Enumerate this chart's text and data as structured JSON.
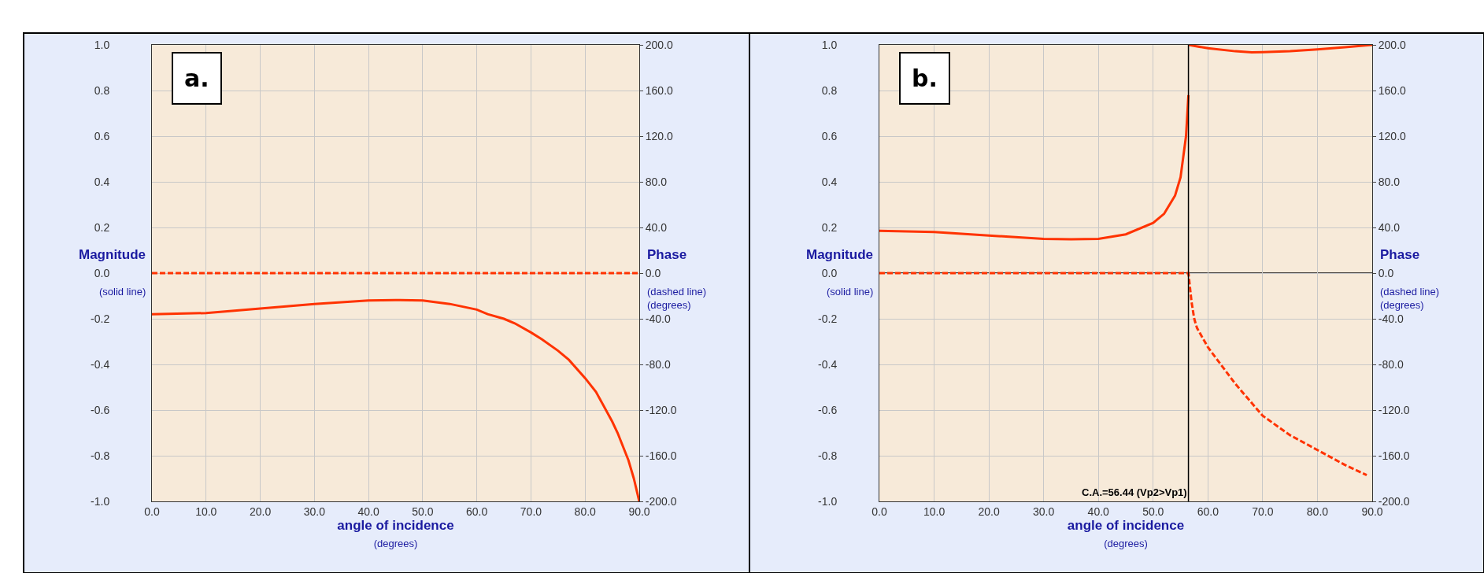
{
  "chart_data": [
    {
      "type": "line",
      "annotations": [
        "a."
      ],
      "xlabel": "angle of incidence\n(degrees)",
      "ylabel": "Magnitude\n(solid line)",
      "y2label": "Phase\n(dashed line)\n(degrees)",
      "xlim": [
        0,
        90
      ],
      "ylim": [
        -1,
        1
      ],
      "y2lim": [
        -200,
        200
      ],
      "xticks": [
        {
          "value": 0,
          "label": "0.0"
        },
        {
          "value": 10,
          "label": "10.0"
        },
        {
          "value": 20,
          "label": "20.0"
        },
        {
          "value": 30,
          "label": "30.0"
        },
        {
          "value": 40,
          "label": "40.0"
        },
        {
          "value": 50,
          "label": "50.0"
        },
        {
          "value": 60,
          "label": "60.0"
        },
        {
          "value": 70,
          "label": "70.0"
        },
        {
          "value": 80,
          "label": "80.0"
        },
        {
          "value": 90,
          "label": "90.0"
        }
      ],
      "yticks": [
        {
          "value": -1,
          "label": "-1.0"
        },
        {
          "value": -0.8,
          "label": "-0.8"
        },
        {
          "value": -0.6,
          "label": "-0.6"
        },
        {
          "value": -0.4,
          "label": "-0.4"
        },
        {
          "value": -0.2,
          "label": "-0.2"
        },
        {
          "value": 0,
          "label": "0.0"
        },
        {
          "value": 0.2,
          "label": "0.2"
        },
        {
          "value": 0.4,
          "label": "0.4"
        },
        {
          "value": 0.6,
          "label": "0.6"
        },
        {
          "value": 0.8,
          "label": "0.8"
        },
        {
          "value": 1,
          "label": "1.0"
        }
      ],
      "y2ticks": [
        {
          "value": -200,
          "label": "-200.0"
        },
        {
          "value": -160,
          "label": "-160.0"
        },
        {
          "value": -120,
          "label": "-120.0"
        },
        {
          "value": -80,
          "label": "-80.0"
        },
        {
          "value": -40,
          "label": "-40.0"
        },
        {
          "value": 0,
          "label": "0.0"
        },
        {
          "value": 40,
          "label": "40.0"
        },
        {
          "value": 80,
          "label": "80.0"
        },
        {
          "value": 120,
          "label": "120.0"
        },
        {
          "value": 160,
          "label": "160.0"
        },
        {
          "value": 200,
          "label": "200.0"
        }
      ],
      "grid": true,
      "series": [
        {
          "color": "#ff3300",
          "line_style": "solid",
          "x": [
            0,
            10,
            20,
            30,
            40,
            45,
            50,
            55,
            60,
            62,
            65,
            67,
            70,
            72,
            75,
            77,
            80,
            82,
            85,
            86,
            88,
            89,
            90
          ],
          "values": [
            -0.18,
            -0.175,
            -0.155,
            -0.135,
            -0.12,
            -0.118,
            -0.12,
            -0.135,
            -0.16,
            -0.18,
            -0.2,
            -0.22,
            -0.26,
            -0.29,
            -0.34,
            -0.38,
            -0.46,
            -0.52,
            -0.65,
            -0.7,
            -0.82,
            -0.9,
            -1.0
          ]
        },
        {
          "color": "#ff3300",
          "line_style": "dashed",
          "axis": "y2",
          "x": [
            0,
            90
          ],
          "values": [
            0,
            0
          ]
        }
      ]
    },
    {
      "type": "line",
      "annotations": [
        "b."
      ],
      "xlabel": "angle of incidence\n(degrees)",
      "ylabel": "Magnitude\n(solid line)",
      "y2label": "Phase\n(dashed line)\n(degrees)",
      "xlim": [
        0,
        90
      ],
      "ylim": [
        -1,
        1
      ],
      "y2lim": [
        -200,
        200
      ],
      "xticks": [
        {
          "value": 0,
          "label": "0.0"
        },
        {
          "value": 10,
          "label": "10.0"
        },
        {
          "value": 20,
          "label": "20.0"
        },
        {
          "value": 30,
          "label": "30.0"
        },
        {
          "value": 40,
          "label": "40.0"
        },
        {
          "value": 50,
          "label": "50.0"
        },
        {
          "value": 60,
          "label": "60.0"
        },
        {
          "value": 70,
          "label": "70.0"
        },
        {
          "value": 80,
          "label": "80.0"
        },
        {
          "value": 90,
          "label": "90.0"
        }
      ],
      "yticks": [
        {
          "value": -1,
          "label": "-1.0"
        },
        {
          "value": -0.8,
          "label": "-0.8"
        },
        {
          "value": -0.6,
          "label": "-0.6"
        },
        {
          "value": -0.4,
          "label": "-0.4"
        },
        {
          "value": -0.2,
          "label": "-0.2"
        },
        {
          "value": 0,
          "label": "0.0"
        },
        {
          "value": 0.2,
          "label": "0.2"
        },
        {
          "value": 0.4,
          "label": "0.4"
        },
        {
          "value": 0.6,
          "label": "0.6"
        },
        {
          "value": 0.8,
          "label": "0.8"
        },
        {
          "value": 1,
          "label": "1.0"
        }
      ],
      "y2ticks": [
        {
          "value": -200,
          "label": "-200.0"
        },
        {
          "value": -160,
          "label": "-160.0"
        },
        {
          "value": -120,
          "label": "-120.0"
        },
        {
          "value": -80,
          "label": "-80.0"
        },
        {
          "value": -40,
          "label": "-40.0"
        },
        {
          "value": 0,
          "label": "0.0"
        },
        {
          "value": 40,
          "label": "40.0"
        },
        {
          "value": 80,
          "label": "80.0"
        },
        {
          "value": 120,
          "label": "120.0"
        },
        {
          "value": 160,
          "label": "160.0"
        },
        {
          "value": 200,
          "label": "200.0"
        }
      ],
      "grid": true,
      "ref_lines": [
        {
          "axis": "x",
          "value": 56.44,
          "label": "C.A.=56.44 (Vp2>Vp1)",
          "color": "#000000"
        },
        {
          "axis": "y",
          "value": 0,
          "color": "#000000"
        }
      ],
      "series": [
        {
          "color": "#ff3300",
          "line_style": "solid",
          "x": [
            0,
            10,
            20,
            30,
            35,
            40,
            45,
            50,
            52,
            54,
            55,
            56,
            56.44
          ],
          "values": [
            0.185,
            0.18,
            0.165,
            0.15,
            0.148,
            0.15,
            0.17,
            0.22,
            0.26,
            0.34,
            0.42,
            0.6,
            0.78
          ]
        },
        {
          "color": "#ff3300",
          "line_style": "solid",
          "x": [
            56.44,
            60,
            65,
            68,
            70,
            75,
            80,
            85,
            90
          ],
          "values": [
            1.0,
            0.985,
            0.972,
            0.967,
            0.968,
            0.972,
            0.98,
            0.99,
            1.0
          ]
        },
        {
          "color": "#ff3300",
          "line_style": "dashed",
          "axis": "y2",
          "x": [
            0,
            56.44,
            57,
            57.5,
            58,
            60,
            65,
            70,
            75,
            80,
            85,
            89
          ],
          "values": [
            0,
            0,
            -25,
            -40,
            -48,
            -65,
            -97,
            -125,
            -142,
            -155,
            -168,
            -177
          ]
        }
      ]
    }
  ]
}
